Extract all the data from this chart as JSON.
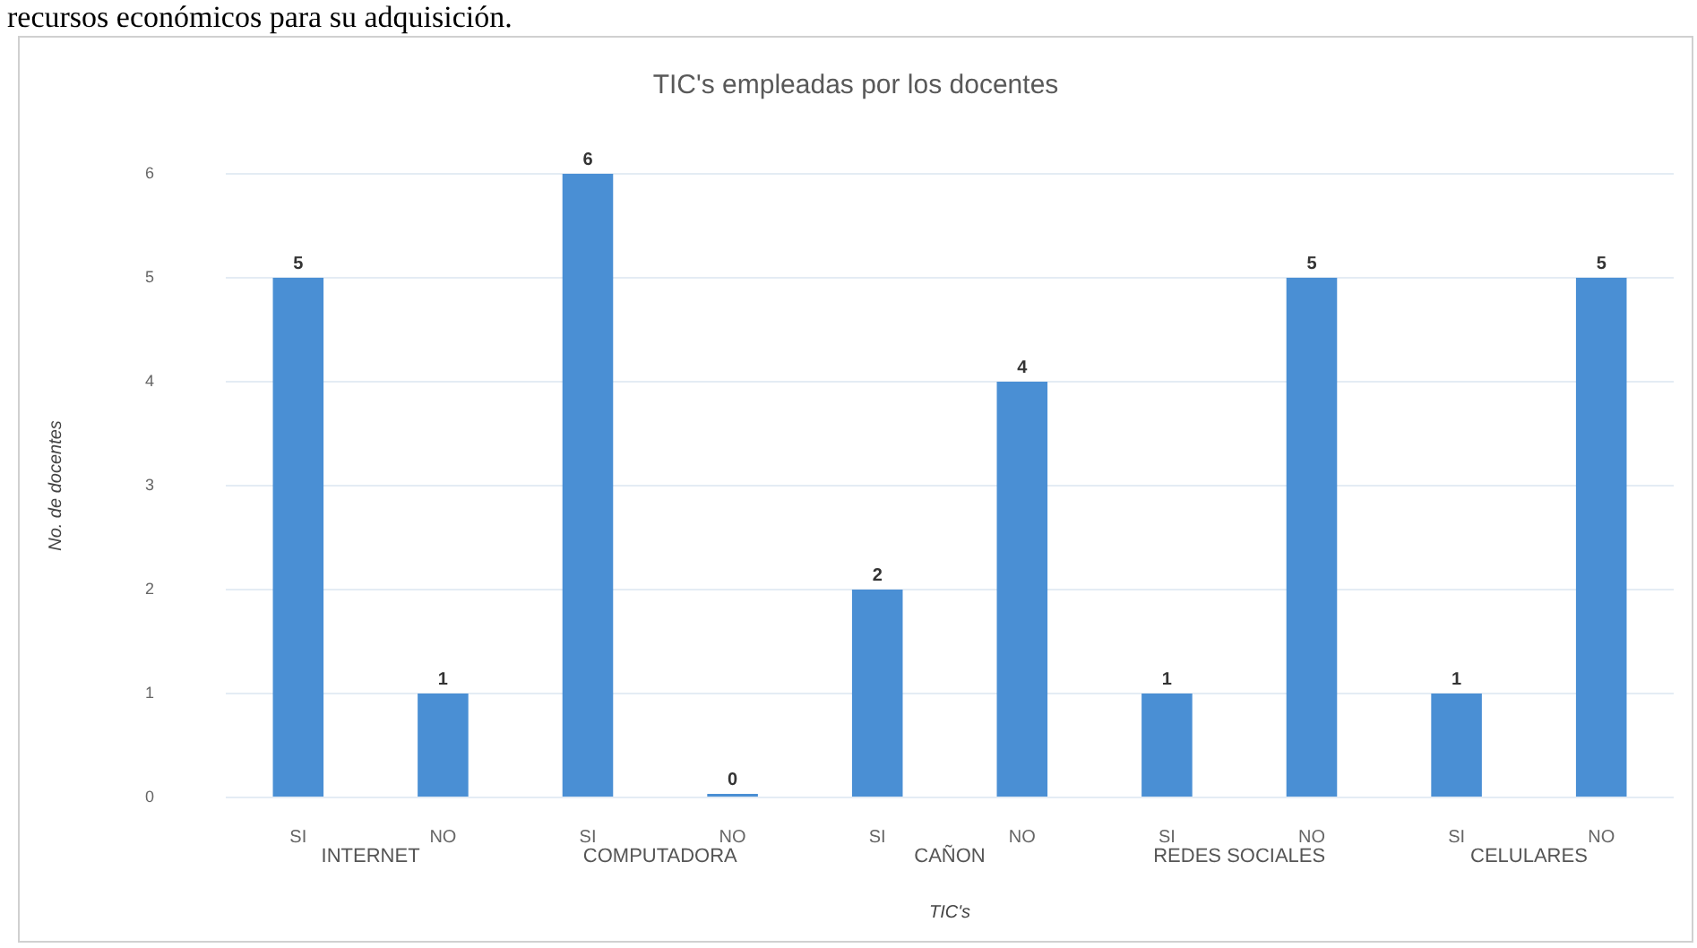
{
  "chart_data": {
    "type": "bar",
    "title": "TIC's empleadas por los docentes",
    "xlabel": "TIC's",
    "ylabel": "No. de docentes",
    "categories": [
      "SI",
      "NO",
      "SI",
      "NO",
      "SI",
      "NO",
      "SI",
      "NO",
      "SI",
      "NO"
    ],
    "values": [
      5,
      1,
      6,
      0,
      2,
      4,
      1,
      5,
      1,
      5
    ],
    "color": "#4a8fd4",
    "ylim": [
      0,
      6
    ],
    "yticks": [
      0,
      1,
      2,
      3,
      4,
      5,
      6
    ],
    "grid": "y",
    "legend": false,
    "data_labels": true,
    "annotations": [
      "recursos económicos para su adquisición.",
      "INTERNET",
      "COMPUTADORA",
      "CAÑON",
      "REDES SOCIALES",
      "CELULARES"
    ]
  }
}
